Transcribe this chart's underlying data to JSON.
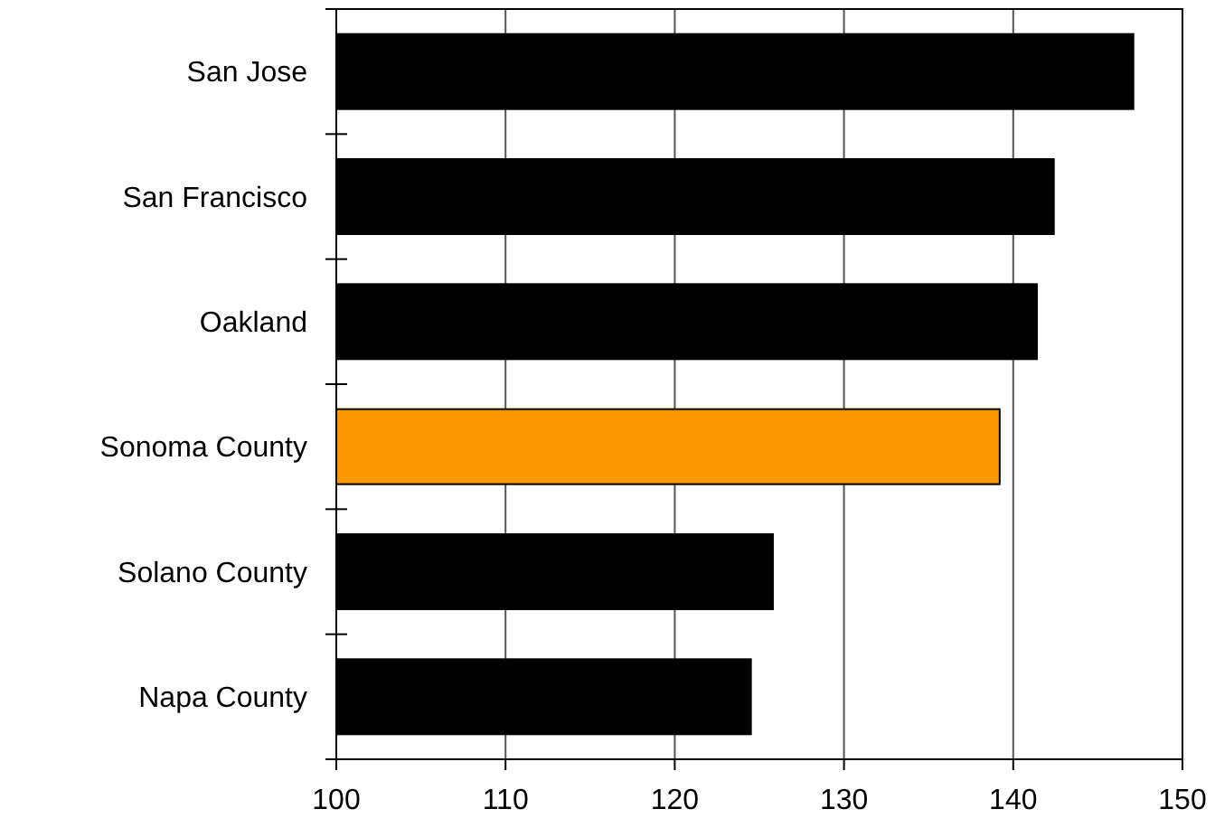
{
  "chart_data": {
    "type": "bar",
    "orientation": "horizontal",
    "categories": [
      "San Jose",
      "San Francisco",
      "Oakland",
      "Sonoma County",
      "Solano County",
      "Napa County"
    ],
    "values": [
      147.1,
      142.4,
      141.4,
      139.2,
      125.8,
      124.5
    ],
    "colors": [
      "#000000",
      "#000000",
      "#000000",
      "#ff9900",
      "#000000",
      "#000000"
    ],
    "xlim": [
      100,
      150
    ],
    "xticks": [
      100,
      110,
      120,
      130,
      140,
      150
    ],
    "grid": "x"
  }
}
